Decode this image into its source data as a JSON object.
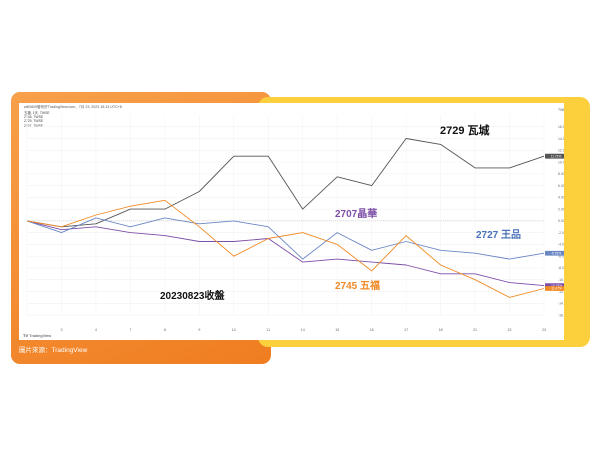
{
  "header": {
    "top_line": "will0809發布於TradingView.com，7月 23, 2023 15:13 UTC+8",
    "source_caption": "圖片來源：TradingView",
    "logo_text": "TradingView"
  },
  "chart_data": {
    "type": "line",
    "title": "",
    "subtitle_lines": [
      "五福, 1天, TWSE",
      "2745, TWSE",
      "2729, TWSE",
      "2707, TWSE"
    ],
    "x": [
      "",
      "3",
      "4",
      "7",
      "8",
      "9",
      "10",
      "11",
      "14",
      "15",
      "16",
      "17",
      "18",
      "21",
      "22",
      "23"
    ],
    "x_dates_note": "",
    "ylabel": "",
    "y_unit": "%",
    "ylim": [
      -16,
      18
    ],
    "y_ticks": [
      16,
      14,
      12,
      10,
      8,
      6,
      4,
      2,
      0,
      -2,
      -4,
      -6,
      -8,
      -10,
      -12,
      -14,
      -16
    ],
    "y_tick_labels": [
      "16.00%",
      "14.00%",
      "12.00%",
      "10.00%",
      "8.00%",
      "6.00%",
      "4.00%",
      "2.00%",
      "0.00%",
      "-2.00%",
      "-4.00%",
      "-6.00%",
      "-8.00%",
      "-10.00%",
      "-12.00%",
      "-14.00%",
      "-16.00%"
    ],
    "axis_currency": "TWD",
    "series": [
      {
        "name": "2729 瓦城",
        "color": "#555555",
        "values": [
          0,
          -1,
          -0.5,
          2,
          2,
          5,
          11,
          11,
          2,
          7.5,
          6,
          14,
          13,
          9,
          9,
          11
        ],
        "end_label": "11.72%"
      },
      {
        "name": "2707 晶華",
        "color": "#7e4fa8",
        "values": [
          0,
          -1.5,
          -1,
          -2,
          -2.5,
          -3.5,
          -3.5,
          -3,
          -7,
          -6.5,
          -7,
          -7.5,
          -9,
          -9,
          -10.5,
          -11
        ],
        "end_label": "-10.75%"
      },
      {
        "name": "2727 王品",
        "color": "#6b86c4",
        "values": [
          0,
          -2,
          0.5,
          -1,
          0.5,
          -0.5,
          0,
          -1,
          -6.5,
          -2,
          -5,
          -3.5,
          -5,
          -5.5,
          -6.5,
          -5.5
        ],
        "end_label": "-5.75%"
      },
      {
        "name": "2745 五福",
        "color": "#f08a24",
        "values": [
          0,
          -1,
          1,
          2.5,
          3.5,
          -1,
          -6,
          -3,
          -2,
          -4,
          -8.5,
          -2.5,
          -7.5,
          -10,
          -13,
          -11.5
        ],
        "end_label": "-11.47%"
      }
    ],
    "annotations": [
      {
        "text": "2729 瓦城",
        "color": "#111111"
      },
      {
        "text": "2707晶華",
        "color": "#7e4fa8"
      },
      {
        "text": "2727 王品",
        "color": "#4a72b8"
      },
      {
        "text": "2745 五福",
        "color": "#f08a24"
      },
      {
        "text": "20230823收盤",
        "color": "#111111"
      }
    ],
    "grid": true,
    "legend_placement": "top-left"
  }
}
